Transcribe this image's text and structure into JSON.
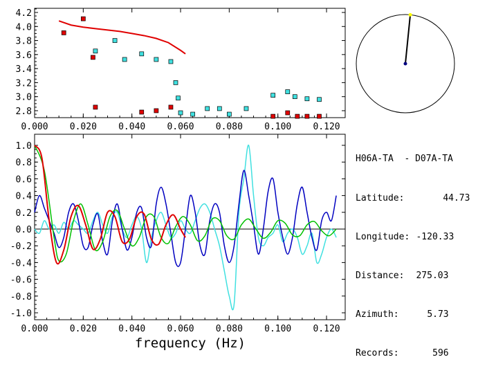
{
  "info_panel": {
    "station_pair": "H06A-TA  - D07A-TA",
    "rows": [
      {
        "label": "Latitude:",
        "value": "44.73"
      },
      {
        "label": "Longitude:",
        "value": "-120.33"
      },
      {
        "label": "Distance:",
        "value": "275.03"
      },
      {
        "label": "Azimuth:",
        "value": "5.73"
      },
      {
        "label": "Records:",
        "value": "596"
      }
    ]
  },
  "compass": {
    "azimuth_deg": 5.73,
    "colors": {
      "needle": "#000000",
      "tip": "#ffff00",
      "center": "#000080"
    }
  },
  "chart_data": [
    {
      "type": "scatter",
      "title": "",
      "xlabel": "",
      "ylabel": "",
      "xlim": [
        0.0,
        0.125
      ],
      "ylim": [
        2.7,
        4.25
      ],
      "xticks": [
        "0.000",
        "0.020",
        "0.040",
        "0.060",
        "0.080",
        "0.100",
        "0.120"
      ],
      "xtick_values": [
        0.0,
        0.02,
        0.04,
        0.06,
        0.08,
        0.1,
        0.12
      ],
      "yticks": [
        "2.8",
        "3.0",
        "3.2",
        "3.4",
        "3.6",
        "3.8",
        "4.0",
        "4.2"
      ],
      "ytick_values": [
        2.8,
        3.0,
        3.2,
        3.4,
        3.6,
        3.8,
        4.0,
        4.2
      ],
      "series": [
        {
          "name": "red-points",
          "color": "#e00000",
          "x": [
            0.012,
            0.02,
            0.024,
            0.025,
            0.044,
            0.05,
            0.056,
            0.098,
            0.104,
            0.108,
            0.112,
            0.117
          ],
          "y": [
            3.91,
            4.11,
            3.56,
            2.85,
            2.78,
            2.8,
            2.85,
            2.72,
            2.77,
            2.72,
            2.72,
            2.72
          ]
        },
        {
          "name": "cyan-points",
          "color": "#40e0e0",
          "x": [
            0.025,
            0.033,
            0.037,
            0.044,
            0.05,
            0.056,
            0.058,
            0.059,
            0.06,
            0.065,
            0.071,
            0.076,
            0.08,
            0.087,
            0.098,
            0.104,
            0.107,
            0.112,
            0.117
          ],
          "y": [
            3.65,
            3.8,
            3.53,
            3.61,
            3.53,
            3.5,
            3.2,
            2.98,
            2.77,
            2.75,
            2.83,
            2.83,
            2.75,
            2.83,
            3.02,
            3.07,
            3.0,
            2.97,
            2.96
          ]
        },
        {
          "name": "red-curve",
          "color": "#e00000",
          "type": "line",
          "x": [
            0.01,
            0.015,
            0.02,
            0.025,
            0.03,
            0.035,
            0.04,
            0.045,
            0.05,
            0.055,
            0.06,
            0.062
          ],
          "y": [
            4.08,
            4.02,
            3.99,
            3.97,
            3.95,
            3.93,
            3.9,
            3.87,
            3.83,
            3.77,
            3.66,
            3.61
          ]
        }
      ]
    },
    {
      "type": "line",
      "title": "",
      "xlabel": "frequency (Hz)",
      "ylabel": "",
      "xlim": [
        0.0,
        0.125
      ],
      "ylim": [
        -1.1,
        1.05
      ],
      "xticks": [
        "0.000",
        "0.020",
        "0.040",
        "0.060",
        "0.080",
        "0.100",
        "0.120"
      ],
      "xtick_values": [
        0.0,
        0.02,
        0.04,
        0.06,
        0.08,
        0.1,
        0.12
      ],
      "yticks": [
        "1.0",
        "0.8",
        "0.6",
        "0.4",
        "0.2",
        "0.0",
        "-0.2",
        "-0.4",
        "-0.6",
        "-0.8",
        "-1.0"
      ],
      "ytick_values": [
        1.0,
        0.8,
        0.6,
        0.4,
        0.2,
        0.0,
        -0.2,
        -0.4,
        -0.6,
        -0.8,
        -1.0
      ],
      "series": [
        {
          "name": "green-bessel",
          "color": "#00c000",
          "x": [
            0.0,
            0.004,
            0.008,
            0.01,
            0.013,
            0.016,
            0.019,
            0.022,
            0.025,
            0.028,
            0.031,
            0.034,
            0.037,
            0.04,
            0.043,
            0.046,
            0.049,
            0.052,
            0.055,
            0.058,
            0.061,
            0.064,
            0.067,
            0.07,
            0.073,
            0.076,
            0.079,
            0.082,
            0.085,
            0.088,
            0.091,
            0.094,
            0.097,
            0.1,
            0.103,
            0.106,
            0.109,
            0.112,
            0.115,
            0.118,
            0.121,
            0.124
          ],
          "y": [
            1.0,
            0.7,
            -0.1,
            -0.38,
            -0.3,
            0.1,
            0.3,
            0.05,
            -0.25,
            -0.15,
            0.15,
            0.22,
            0.0,
            -0.2,
            -0.1,
            0.15,
            0.15,
            -0.1,
            -0.17,
            0.03,
            0.15,
            0.05,
            -0.14,
            -0.08,
            0.12,
            0.1,
            -0.08,
            -0.12,
            0.05,
            0.12,
            0.0,
            -0.11,
            -0.04,
            0.1,
            0.07,
            -0.07,
            -0.08,
            0.05,
            0.09,
            -0.02,
            -0.08,
            0.0
          ]
        },
        {
          "name": "red-fit",
          "color": "#e00000",
          "x": [
            0.0,
            0.003,
            0.006,
            0.009,
            0.012,
            0.015,
            0.018,
            0.021,
            0.024,
            0.027,
            0.03,
            0.033,
            0.036,
            0.039,
            0.042,
            0.045,
            0.048,
            0.051,
            0.054,
            0.057,
            0.06,
            0.062
          ],
          "y": [
            1.0,
            0.85,
            0.1,
            -0.4,
            -0.25,
            0.15,
            0.28,
            0.05,
            -0.24,
            -0.12,
            0.2,
            0.15,
            -0.15,
            -0.12,
            0.15,
            0.18,
            -0.12,
            -0.18,
            0.05,
            0.17,
            0.0,
            -0.1
          ]
        },
        {
          "name": "blue-data",
          "color": "#0000c0",
          "x": [
            0.0,
            0.002,
            0.004,
            0.006,
            0.008,
            0.01,
            0.012,
            0.014,
            0.016,
            0.018,
            0.02,
            0.022,
            0.024,
            0.026,
            0.028,
            0.03,
            0.032,
            0.034,
            0.036,
            0.038,
            0.04,
            0.042,
            0.044,
            0.046,
            0.048,
            0.05,
            0.052,
            0.054,
            0.056,
            0.058,
            0.06,
            0.062,
            0.064,
            0.066,
            0.068,
            0.07,
            0.072,
            0.074,
            0.076,
            0.078,
            0.08,
            0.082,
            0.084,
            0.086,
            0.088,
            0.09,
            0.092,
            0.094,
            0.096,
            0.098,
            0.1,
            0.102,
            0.104,
            0.106,
            0.108,
            0.11,
            0.112,
            0.114,
            0.116,
            0.118,
            0.12,
            0.122,
            0.124
          ],
          "y": [
            0.2,
            0.4,
            0.25,
            0.1,
            -0.05,
            -0.22,
            -0.1,
            0.2,
            0.3,
            0.1,
            -0.2,
            -0.22,
            0.05,
            0.18,
            -0.15,
            -0.3,
            0.1,
            0.3,
            0.0,
            -0.25,
            -0.1,
            0.2,
            0.25,
            -0.1,
            -0.2,
            0.3,
            0.5,
            0.3,
            -0.05,
            -0.4,
            -0.4,
            0.0,
            0.4,
            0.2,
            -0.2,
            -0.3,
            0.1,
            0.3,
            0.2,
            -0.2,
            -0.4,
            -0.2,
            0.3,
            0.7,
            0.4,
            0.05,
            -0.3,
            0.0,
            0.45,
            0.6,
            0.2,
            -0.1,
            -0.3,
            -0.1,
            0.3,
            0.5,
            0.2,
            -0.1,
            -0.25,
            0.1,
            0.2,
            0.1,
            0.4
          ]
        },
        {
          "name": "cyan-data",
          "color": "#40e0e0",
          "x": [
            0.0,
            0.002,
            0.004,
            0.006,
            0.008,
            0.01,
            0.012,
            0.014,
            0.016,
            0.018,
            0.02,
            0.022,
            0.024,
            0.026,
            0.028,
            0.03,
            0.032,
            0.034,
            0.036,
            0.038,
            0.04,
            0.042,
            0.044,
            0.046,
            0.048,
            0.05,
            0.052,
            0.054,
            0.056,
            0.058,
            0.06,
            0.062,
            0.064,
            0.066,
            0.068,
            0.07,
            0.072,
            0.074,
            0.076,
            0.078,
            0.08,
            0.082,
            0.084,
            0.086,
            0.088,
            0.09,
            0.092,
            0.094,
            0.096,
            0.098,
            0.1,
            0.102,
            0.104,
            0.106,
            0.108,
            0.11,
            0.112,
            0.114,
            0.116,
            0.118,
            0.12,
            0.122,
            0.124
          ],
          "y": [
            0.0,
            -0.05,
            0.1,
            0.0,
            0.05,
            -0.05,
            0.08,
            0.0,
            0.1,
            0.05,
            0.0,
            -0.05,
            0.1,
            0.2,
            0.05,
            -0.05,
            0.15,
            0.2,
            0.0,
            -0.1,
            0.05,
            0.15,
            0.0,
            -0.4,
            -0.1,
            0.1,
            0.2,
            0.05,
            -0.1,
            -0.05,
            0.1,
            0.0,
            -0.05,
            0.1,
            0.25,
            0.3,
            0.2,
            0.0,
            -0.2,
            -0.5,
            -0.8,
            -0.9,
            0.2,
            0.6,
            1.0,
            0.4,
            -0.1,
            -0.2,
            -0.1,
            -0.05,
            0.05,
            -0.15,
            -0.05,
            0.0,
            -0.1,
            -0.3,
            -0.2,
            -0.05,
            -0.4,
            -0.3,
            -0.1,
            0.0,
            -0.1
          ]
        }
      ]
    }
  ]
}
